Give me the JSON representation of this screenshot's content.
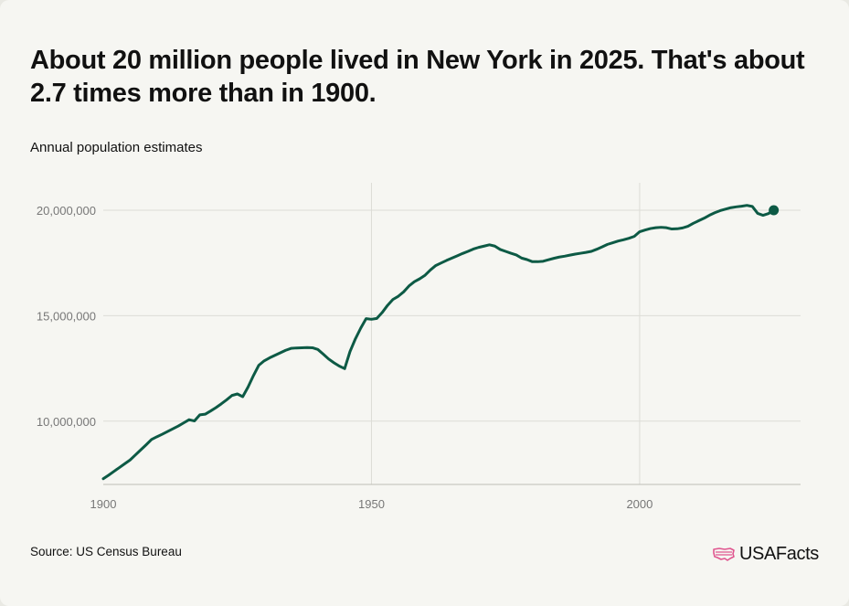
{
  "header": {
    "title": "About 20 million people lived in New York in 2025. That's about 2.7 times more than in 1900.",
    "subtitle": "Annual population estimates"
  },
  "footer": {
    "source": "Source: US Census Bureau",
    "brand": "USAFacts"
  },
  "colors": {
    "line": "#0d5a45",
    "grid": "#dcdcd6",
    "axis_text": "#777777",
    "logo_accent": "#e0568f"
  },
  "chart_data": {
    "type": "line",
    "title": "About 20 million people lived in New York in 2025. That's about 2.7 times more than in 1900.",
    "subtitle": "Annual population estimates",
    "xlabel": "",
    "ylabel": "",
    "xlim": [
      1900,
      2030
    ],
    "ylim": [
      7000000,
      21300000
    ],
    "x_ticks": [
      1900,
      1950,
      2000
    ],
    "x_tick_labels": [
      "1900",
      "1950",
      "2000"
    ],
    "y_ticks": [
      10000000,
      15000000,
      20000000
    ],
    "y_tick_labels": [
      "10,000,000",
      "15,000,000",
      "20,000,000"
    ],
    "grid": true,
    "end_marker": true,
    "series": [
      {
        "x": [
          1900,
          1901,
          1902,
          1903,
          1904,
          1905,
          1906,
          1907,
          1908,
          1909,
          1910,
          1911,
          1912,
          1913,
          1914,
          1915,
          1916,
          1917,
          1918,
          1919,
          1920,
          1921,
          1922,
          1923,
          1924,
          1925,
          1926,
          1927,
          1928,
          1929,
          1930,
          1931,
          1932,
          1933,
          1934,
          1935,
          1936,
          1937,
          1938,
          1939,
          1940,
          1941,
          1942,
          1943,
          1944,
          1945,
          1946,
          1947,
          1948,
          1949,
          1950,
          1951,
          1952,
          1953,
          1954,
          1955,
          1956,
          1957,
          1958,
          1959,
          1960,
          1961,
          1962,
          1963,
          1964,
          1965,
          1966,
          1967,
          1968,
          1969,
          1970,
          1971,
          1972,
          1973,
          1974,
          1975,
          1976,
          1977,
          1978,
          1979,
          1980,
          1981,
          1982,
          1983,
          1984,
          1985,
          1986,
          1987,
          1988,
          1989,
          1990,
          1991,
          1992,
          1993,
          1994,
          1995,
          1996,
          1997,
          1998,
          1999,
          2000,
          2001,
          2002,
          2003,
          2004,
          2005,
          2006,
          2007,
          2008,
          2009,
          2010,
          2011,
          2012,
          2013,
          2014,
          2015,
          2016,
          2017,
          2018,
          2019,
          2020,
          2021,
          2022,
          2023,
          2024,
          2025
        ],
        "values": [
          7270000,
          7440000,
          7620000,
          7800000,
          7980000,
          8160000,
          8400000,
          8640000,
          8880000,
          9130000,
          9260000,
          9380000,
          9510000,
          9640000,
          9770000,
          9920000,
          10070000,
          10010000,
          10300000,
          10330000,
          10480000,
          10640000,
          10820000,
          11010000,
          11220000,
          11290000,
          11160000,
          11620000,
          12160000,
          12650000,
          12860000,
          13000000,
          13120000,
          13240000,
          13360000,
          13450000,
          13470000,
          13480000,
          13490000,
          13480000,
          13400000,
          13180000,
          12950000,
          12770000,
          12610000,
          12490000,
          13300000,
          13900000,
          14410000,
          14860000,
          14830000,
          14870000,
          15150000,
          15490000,
          15770000,
          15920000,
          16130000,
          16410000,
          16610000,
          16750000,
          16920000,
          17170000,
          17380000,
          17500000,
          17620000,
          17730000,
          17840000,
          17950000,
          18050000,
          18160000,
          18240000,
          18300000,
          18360000,
          18300000,
          18140000,
          18050000,
          17960000,
          17880000,
          17730000,
          17660000,
          17560000,
          17560000,
          17580000,
          17650000,
          17720000,
          17780000,
          17820000,
          17870000,
          17920000,
          17960000,
          18000000,
          18050000,
          18150000,
          18260000,
          18380000,
          18460000,
          18540000,
          18600000,
          18670000,
          18760000,
          18980000,
          19060000,
          19130000,
          19170000,
          19190000,
          19170000,
          19110000,
          19120000,
          19160000,
          19240000,
          19380000,
          19500000,
          19620000,
          19760000,
          19880000,
          19980000,
          20050000,
          20120000,
          20160000,
          20190000,
          20230000,
          20180000,
          19850000,
          19760000,
          19840000,
          20000000
        ]
      }
    ]
  }
}
